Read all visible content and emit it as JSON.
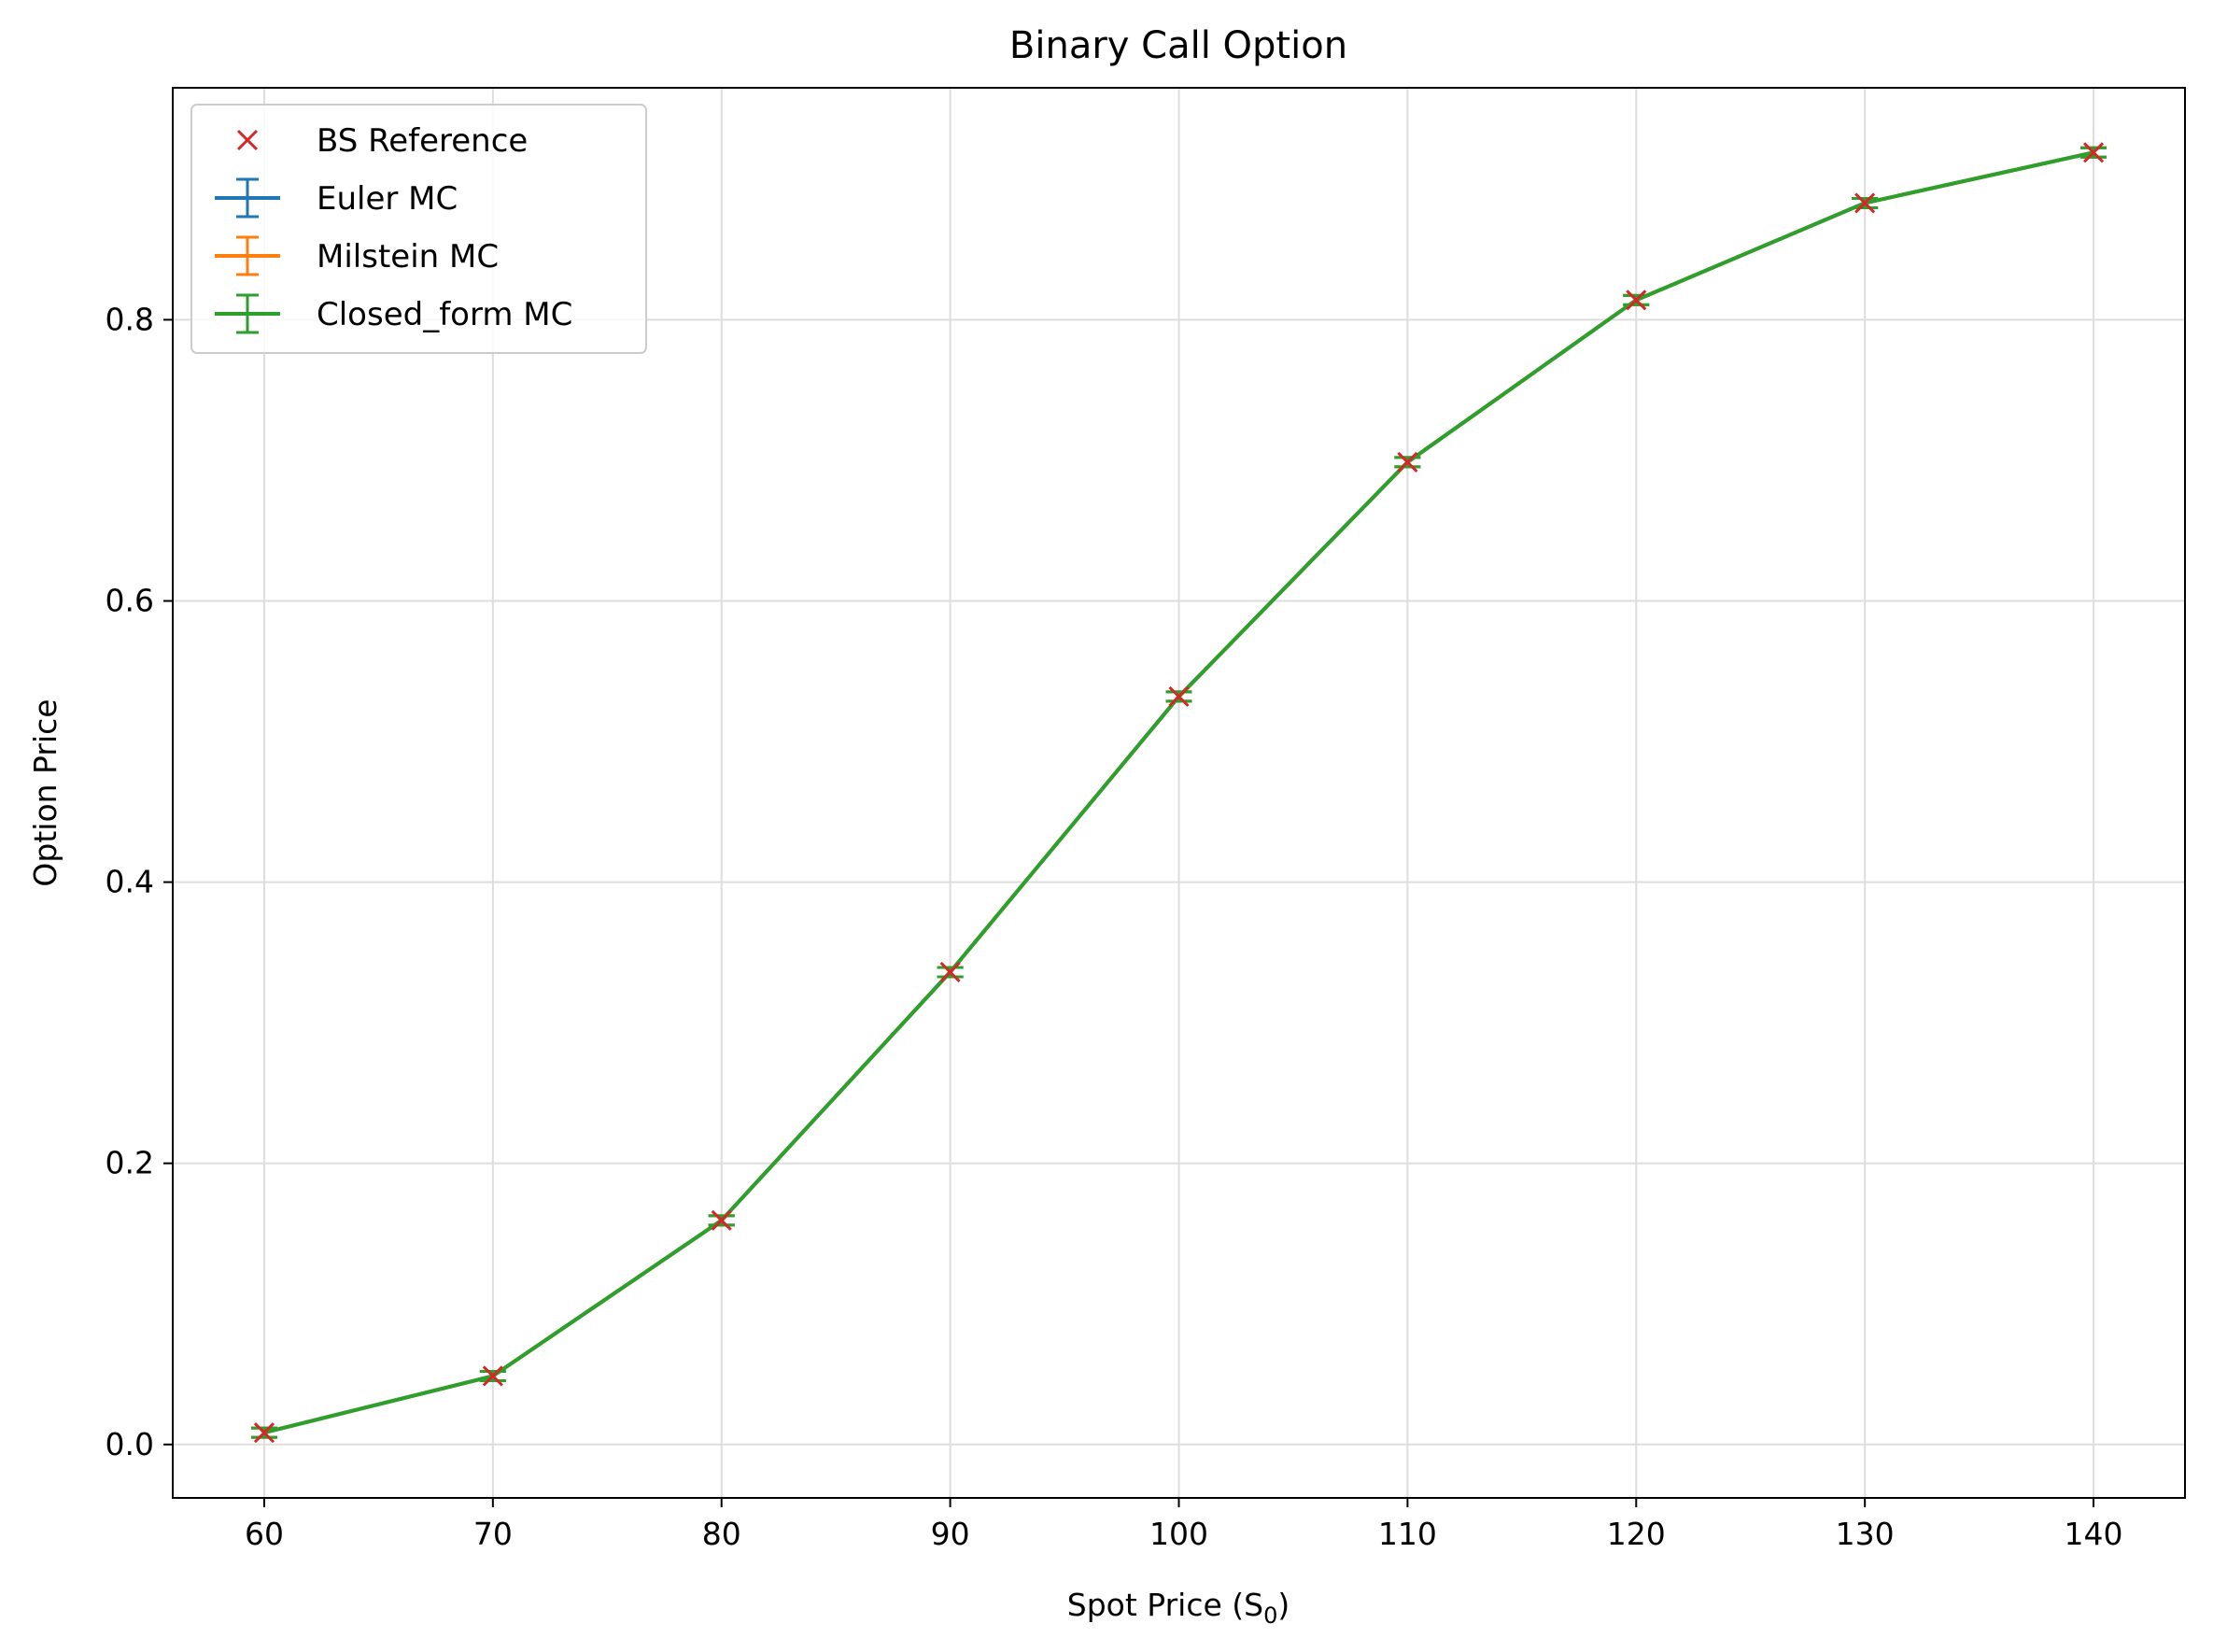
{
  "chart_data": {
    "type": "line",
    "title": "Binary Call Option",
    "xlabel": "Spot Price (S",
    "xlabel_sub": "0",
    "xlabel_close": ")",
    "ylabel": "Option Price",
    "x": [
      60,
      70,
      80,
      90,
      100,
      110,
      120,
      130,
      140
    ],
    "xticks": [
      "60",
      "70",
      "80",
      "90",
      "100",
      "110",
      "120",
      "130",
      "140"
    ],
    "yticks": [
      "0.0",
      "0.2",
      "0.4",
      "0.6",
      "0.8"
    ],
    "ytick_values": [
      0.0,
      0.2,
      0.4,
      0.6,
      0.8
    ],
    "xlim": [
      56,
      144
    ],
    "ylim": [
      -0.038,
      0.965
    ],
    "grid": true,
    "legend_position": "top-left",
    "series": [
      {
        "name": "BS Reference",
        "style": "markers",
        "marker": "x",
        "color": "#d62728",
        "values": [
          0.0084,
          0.0487,
          0.1594,
          0.336,
          0.532,
          0.6987,
          0.814,
          0.883,
          0.919
        ]
      },
      {
        "name": "Euler MC",
        "style": "errorbar",
        "color": "#1f77b4",
        "values": [
          0.0084,
          0.0487,
          0.1594,
          0.336,
          0.532,
          0.6987,
          0.814,
          0.883,
          0.919
        ]
      },
      {
        "name": "Milstein MC",
        "style": "errorbar",
        "color": "#ff7f0e",
        "values": [
          0.0084,
          0.0487,
          0.1594,
          0.336,
          0.532,
          0.6987,
          0.814,
          0.883,
          0.919
        ]
      },
      {
        "name": "Closed_form MC",
        "style": "errorbar",
        "color": "#2ca02c",
        "values": [
          0.0084,
          0.0487,
          0.1594,
          0.336,
          0.532,
          0.6987,
          0.814,
          0.883,
          0.919
        ]
      }
    ]
  }
}
